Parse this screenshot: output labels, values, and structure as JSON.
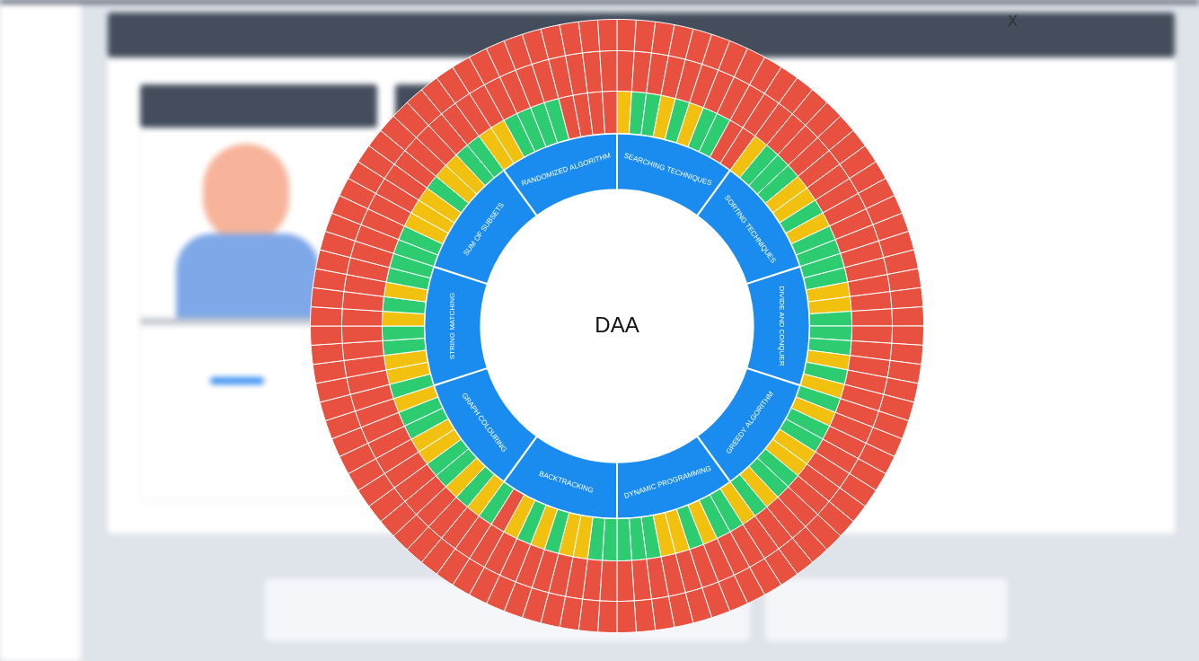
{
  "chart_data": {
    "type": "sunburst",
    "title": "DAA",
    "close_button": "X",
    "categories": [
      "SEARCHING TECHNIQUES",
      "SORTING TECHNIQUES",
      "DIVIDE AND CONQUER",
      "GREEDY ALGORITHM",
      "DYNAMIC PROGRAMMING",
      "BACKTRACKING",
      "GRAPH COLOURING",
      "STRING MATCHING",
      "SUM OF SUBSETS",
      "RANDOMIZED ALGORITHM"
    ],
    "color": "#1a8cf0",
    "rings": [
      {
        "colors": [
          "#f2c10f",
          "#2ecc71",
          "#2ecc71",
          "#f2c10f",
          "#2ecc71",
          "#f2c10f",
          "#2ecc71",
          "#2ecc71",
          "#e8503f",
          "#e8503f",
          "#f2c10f",
          "#2ecc71",
          "#2ecc71",
          "#2ecc71",
          "#f2c10f",
          "#f2c10f",
          "#2ecc71",
          "#f2c10f",
          "#2ecc71",
          "#2ecc71",
          "#2ecc71",
          "#2ecc71",
          "#f2c10f",
          "#f2c10f",
          "#2ecc71",
          "#2ecc71",
          "#2ecc71",
          "#f2c10f",
          "#2ecc71",
          "#f2c10f",
          "#2ecc71",
          "#f2c10f",
          "#2ecc71",
          "#2ecc71",
          "#f2c10f",
          "#f2c10f",
          "#2ecc71",
          "#2ecc71",
          "#f2c10f",
          "#2ecc71",
          "#f2c10f",
          "#2ecc71",
          "#2ecc71",
          "#f2c10f",
          "#2ecc71",
          "#f2c10f",
          "#f2c10f",
          "#2ecc71",
          "#2ecc71",
          "#2ecc71",
          "#2ecc71",
          "#2ecc71",
          "#f2c10f",
          "#f2c10f",
          "#2ecc71",
          "#f2c10f",
          "#2ecc71",
          "#f2c10f",
          "#e8503f",
          "#2ecc71",
          "#f2c10f",
          "#2ecc71",
          "#f2c10f",
          "#2ecc71",
          "#2ecc71",
          "#f2c10f",
          "#f2c10f",
          "#2ecc71",
          "#2ecc71",
          "#f2c10f",
          "#2ecc71",
          "#f2c10f",
          "#f2c10f",
          "#2ecc71",
          "#2ecc71",
          "#f2c10f",
          "#2ecc71",
          "#f2c10f",
          "#2ecc71",
          "#2ecc71",
          "#2ecc71",
          "#2ecc71",
          "#f2c10f",
          "#f2c10f",
          "#f2c10f",
          "#2ecc71",
          "#f2c10f",
          "#f2c10f",
          "#2ecc71",
          "#2ecc71",
          "#f2c10f",
          "#f2c10f",
          "#2ecc71",
          "#2ecc71",
          "#2ecc71",
          "#2ecc71",
          "#e8503f",
          "#e8503f",
          "#e8503f",
          "#e8503f"
        ]
      },
      {
        "colors": [
          "#e8503f",
          "#e8503f",
          "#e8503f",
          "#e8503f",
          "#e8503f",
          "#e8503f",
          "#e8503f",
          "#e8503f",
          "#e8503f",
          "#e8503f",
          "#e8503f",
          "#e8503f",
          "#e8503f",
          "#e8503f",
          "#e8503f",
          "#e8503f",
          "#e8503f",
          "#e8503f",
          "#e8503f",
          "#e8503f",
          "#e8503f",
          "#e8503f",
          "#e8503f",
          "#e8503f",
          "#e8503f",
          "#e8503f",
          "#e8503f",
          "#e8503f",
          "#e8503f",
          "#e8503f",
          "#e8503f",
          "#e8503f",
          "#e8503f",
          "#e8503f",
          "#e8503f",
          "#e8503f",
          "#e8503f",
          "#e8503f",
          "#e8503f",
          "#e8503f",
          "#e8503f",
          "#e8503f",
          "#e8503f",
          "#e8503f",
          "#e8503f",
          "#e8503f",
          "#e8503f",
          "#e8503f",
          "#e8503f",
          "#e8503f",
          "#e8503f",
          "#e8503f",
          "#e8503f",
          "#e8503f",
          "#e8503f",
          "#e8503f",
          "#e8503f",
          "#e8503f",
          "#e8503f",
          "#e8503f",
          "#e8503f",
          "#e8503f",
          "#e8503f",
          "#e8503f",
          "#e8503f",
          "#e8503f",
          "#e8503f",
          "#e8503f",
          "#e8503f",
          "#e8503f",
          "#e8503f",
          "#e8503f",
          "#e8503f",
          "#e8503f",
          "#e8503f",
          "#e8503f",
          "#e8503f",
          "#e8503f",
          "#e8503f",
          "#e8503f",
          "#e8503f",
          "#e8503f",
          "#e8503f",
          "#e8503f",
          "#e8503f",
          "#e8503f",
          "#e8503f",
          "#e8503f",
          "#e8503f",
          "#e8503f",
          "#e8503f",
          "#e8503f",
          "#e8503f",
          "#e8503f",
          "#e8503f",
          "#e8503f",
          "#e8503f",
          "#e8503f",
          "#e8503f",
          "#e8503f"
        ]
      },
      {
        "colors": [
          "#e8503f",
          "#e8503f",
          "#e8503f",
          "#e8503f",
          "#e8503f",
          "#e8503f",
          "#e8503f",
          "#e8503f",
          "#e8503f",
          "#e8503f",
          "#e8503f",
          "#e8503f",
          "#e8503f",
          "#e8503f",
          "#e8503f",
          "#e8503f",
          "#e8503f",
          "#e8503f",
          "#e8503f",
          "#e8503f",
          "#e8503f",
          "#e8503f",
          "#e8503f",
          "#e8503f",
          "#e8503f",
          "#e8503f",
          "#e8503f",
          "#e8503f",
          "#e8503f",
          "#e8503f",
          "#e8503f",
          "#e8503f",
          "#e8503f",
          "#e8503f",
          "#e8503f",
          "#e8503f",
          "#e8503f",
          "#e8503f",
          "#e8503f",
          "#e8503f",
          "#e8503f",
          "#e8503f",
          "#e8503f",
          "#e8503f",
          "#e8503f",
          "#e8503f",
          "#e8503f",
          "#e8503f",
          "#e8503f",
          "#e8503f",
          "#e8503f",
          "#e8503f",
          "#e8503f",
          "#e8503f",
          "#e8503f",
          "#e8503f",
          "#e8503f",
          "#e8503f",
          "#e8503f",
          "#e8503f",
          "#e8503f",
          "#e8503f",
          "#e8503f",
          "#e8503f",
          "#e8503f",
          "#e8503f",
          "#e8503f",
          "#e8503f",
          "#e8503f",
          "#e8503f",
          "#e8503f",
          "#e8503f",
          "#e8503f",
          "#e8503f",
          "#e8503f",
          "#e8503f",
          "#e8503f",
          "#e8503f",
          "#e8503f",
          "#e8503f",
          "#e8503f",
          "#e8503f",
          "#e8503f",
          "#e8503f",
          "#e8503f",
          "#e8503f",
          "#e8503f",
          "#e8503f",
          "#e8503f",
          "#e8503f",
          "#e8503f",
          "#e8503f",
          "#e8503f",
          "#e8503f",
          "#e8503f",
          "#e8503f",
          "#e8503f",
          "#e8503f",
          "#e8503f",
          "#e8503f"
        ]
      }
    ]
  }
}
